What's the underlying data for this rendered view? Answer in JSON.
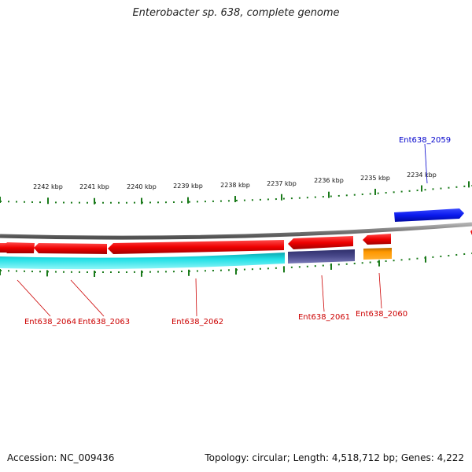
{
  "title": "Enterobacter sp. 638, complete genome",
  "footer": {
    "accession": "Accession: NC_009436",
    "summary": "Topology: circular; Length: 4,518,712 bp; Genes: 4,222"
  },
  "colors": {
    "backbone": "#7a7a7a",
    "tick": "#1a7a1a",
    "forward_cds": "#0a1aee",
    "reverse_cds": "#ee0000",
    "reverse_cds_alt": "#ff9800",
    "rna_track": "#22e0e6",
    "other_track": "#4a4a8c",
    "label_forward": "#0000cc",
    "label_reverse": "#cc0000"
  },
  "scale": {
    "outer_labels": [
      "2242 kbp",
      "2241 kbp",
      "2240 kbp",
      "2239 kbp",
      "2238 kbp",
      "2237 kbp",
      "2236 kbp",
      "2235 kbp",
      "2234 kbp"
    ]
  },
  "genes": [
    {
      "id": "Ent638_2059",
      "strand": "forward"
    },
    {
      "id": "Ent638_2060",
      "strand": "reverse"
    },
    {
      "id": "Ent638_2061",
      "strand": "reverse"
    },
    {
      "id": "Ent638_2062",
      "strand": "reverse"
    },
    {
      "id": "Ent638_2063",
      "strand": "reverse"
    },
    {
      "id": "Ent638_2064",
      "strand": "reverse"
    }
  ]
}
